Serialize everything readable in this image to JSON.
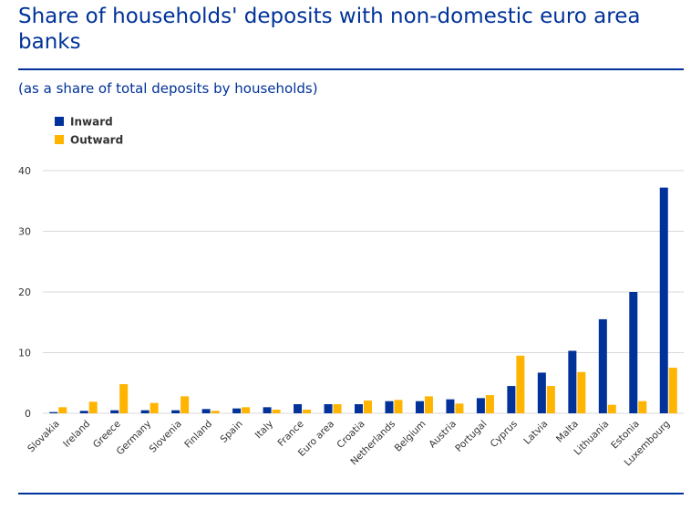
{
  "title": "Share of households' deposits with non-domestic euro area banks",
  "subtitle": "(as a share of total deposits by households)",
  "colors": {
    "inward": "#003299",
    "outward": "#ffb400",
    "heading": "#003299",
    "grid": "#d9d9d9"
  },
  "chart_data": {
    "type": "bar",
    "categories": [
      "Slovakia",
      "Ireland",
      "Greece",
      "Germany",
      "Slovenia",
      "Finland",
      "Spain",
      "Italy",
      "France",
      "Euro area",
      "Croatia",
      "Netherlands",
      "Belgium",
      "Austria",
      "Portugal",
      "Cyprus",
      "Latvia",
      "Malta",
      "Lithuania",
      "Estonia",
      "Luxembourg"
    ],
    "series": [
      {
        "name": "Inward",
        "values": [
          0.2,
          0.4,
          0.5,
          0.5,
          0.5,
          0.7,
          0.8,
          1.0,
          1.5,
          1.5,
          1.5,
          2.0,
          2.0,
          2.3,
          2.5,
          4.5,
          6.7,
          10.3,
          15.5,
          20.0,
          37.2
        ]
      },
      {
        "name": "Outward",
        "values": [
          1.0,
          1.9,
          4.8,
          1.7,
          2.8,
          0.4,
          1.0,
          0.6,
          0.6,
          1.5,
          2.1,
          2.2,
          2.8,
          1.6,
          3.0,
          9.5,
          4.5,
          6.8,
          1.4,
          2.0,
          7.5
        ]
      }
    ],
    "yticks": [
      0,
      10,
      20,
      30,
      40
    ],
    "ylim": [
      0,
      40
    ],
    "grid": true,
    "legend_position": "top-left",
    "xlabel": "",
    "ylabel": ""
  }
}
